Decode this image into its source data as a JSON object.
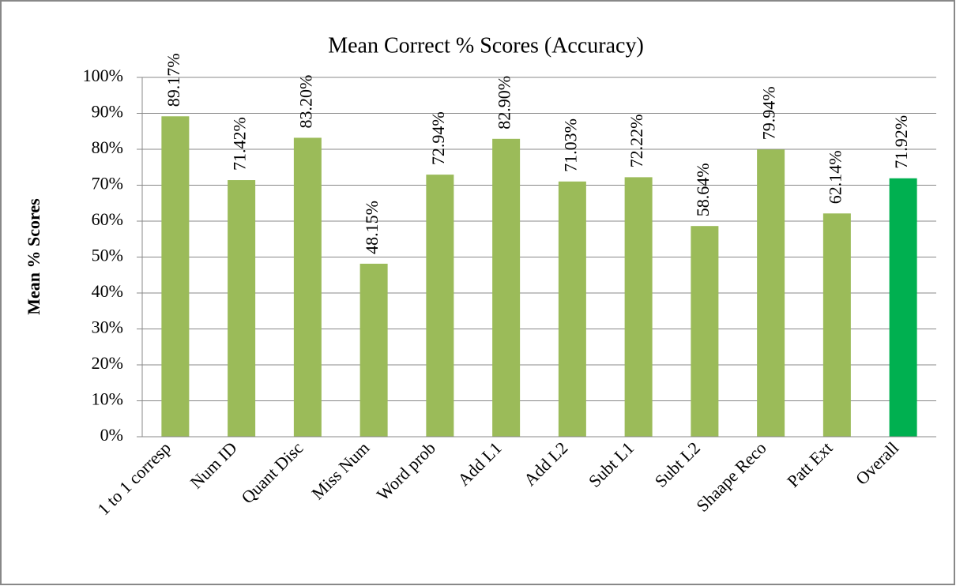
{
  "chart_data": {
    "type": "bar",
    "title": "Mean Correct % Scores (Accuracy)",
    "y_label": "Mean  % Scores",
    "categories": [
      "1 to 1 corresp",
      "Num ID",
      "Quant Disc",
      "Miss Num",
      "Word prob",
      "Add L1",
      "Add L2",
      "Subt L1",
      "Subt L2",
      "Shaape Reco",
      "Patt Ext",
      "Overall"
    ],
    "values": [
      89.17,
      71.42,
      83.2,
      48.15,
      72.94,
      82.9,
      71.03,
      72.22,
      58.64,
      79.94,
      62.14,
      71.92
    ],
    "value_labels": [
      "89.17%",
      "71.42%",
      "83.20%",
      "48.15%",
      "72.94%",
      "82.90%",
      "71.03%",
      "72.22%",
      "58.64%",
      "79.94%",
      "62.14%",
      "71.92%"
    ],
    "colors": [
      "#9bbb59",
      "#9bbb59",
      "#9bbb59",
      "#9bbb59",
      "#9bbb59",
      "#9bbb59",
      "#9bbb59",
      "#9bbb59",
      "#9bbb59",
      "#9bbb59",
      "#9bbb59",
      "#00b050"
    ],
    "ylim": [
      0,
      100
    ],
    "yticks": [
      {
        "value": 0,
        "label": "0%"
      },
      {
        "value": 10,
        "label": "10%"
      },
      {
        "value": 20,
        "label": "20%"
      },
      {
        "value": 30,
        "label": "30%"
      },
      {
        "value": 40,
        "label": "40%"
      },
      {
        "value": 50,
        "label": "50%"
      },
      {
        "value": 60,
        "label": "60%"
      },
      {
        "value": 70,
        "label": "70%"
      },
      {
        "value": 80,
        "label": "80%"
      },
      {
        "value": 90,
        "label": "90%"
      },
      {
        "value": 100,
        "label": "100%"
      }
    ],
    "grid": true
  }
}
